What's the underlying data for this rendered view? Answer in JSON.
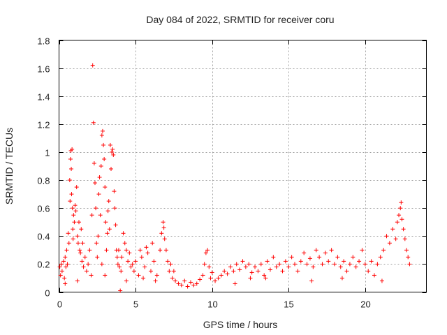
{
  "chart_data": {
    "type": "scatter",
    "title": "Day 084 of 2022, SRMTID for receiver coru",
    "xlabel": "GPS time / hours",
    "ylabel": "SRMTID / TECUs",
    "xlim": [
      0,
      24
    ],
    "ylim": [
      0,
      1.8
    ],
    "xticks": [
      0,
      5,
      10,
      15,
      20
    ],
    "xtick_labels": [
      "0",
      "5",
      "10",
      "15",
      "20"
    ],
    "yticks": [
      0,
      0.2,
      0.4,
      0.6,
      0.8,
      1,
      1.2,
      1.4,
      1.6,
      1.8
    ],
    "ytick_labels": [
      "0",
      "0.2",
      "0.4",
      "0.6",
      "0.8",
      "1",
      "1.2",
      "1.4",
      "1.6",
      "1.8"
    ],
    "grid": true,
    "marker": "+",
    "color": "#ff0000",
    "series": [
      {
        "name": "SRMTID",
        "points": [
          [
            0.05,
            0.18
          ],
          [
            0.1,
            0.12
          ],
          [
            0.15,
            0.2
          ],
          [
            0.2,
            0.15
          ],
          [
            0.3,
            0.22
          ],
          [
            0.35,
            0.1
          ],
          [
            0.4,
            0.25
          ],
          [
            0.45,
            0.18
          ],
          [
            0.5,
            0.3
          ],
          [
            0.55,
            0.2
          ],
          [
            0.6,
            0.42
          ],
          [
            0.65,
            0.35
          ],
          [
            0.7,
            0.8
          ],
          [
            0.72,
            0.65
          ],
          [
            0.75,
            0.95
          ],
          [
            0.78,
            1.01
          ],
          [
            0.8,
            0.88
          ],
          [
            0.82,
            0.7
          ],
          [
            0.85,
            1.02
          ],
          [
            0.88,
            0.6
          ],
          [
            0.9,
            0.45
          ],
          [
            0.92,
            0.38
          ],
          [
            0.95,
            0.55
          ],
          [
            1.0,
            0.5
          ],
          [
            1.05,
            0.62
          ],
          [
            1.1,
            0.58
          ],
          [
            1.15,
            0.75
          ],
          [
            1.2,
            0.4
          ],
          [
            1.25,
            0.35
          ],
          [
            1.3,
            0.5
          ],
          [
            1.35,
            0.3
          ],
          [
            1.4,
            0.28
          ],
          [
            1.45,
            0.45
          ],
          [
            1.5,
            0.22
          ],
          [
            1.55,
            0.35
          ],
          [
            1.6,
            0.18
          ],
          [
            1.7,
            0.25
          ],
          [
            1.8,
            0.15
          ],
          [
            1.9,
            0.2
          ],
          [
            2.0,
            0.3
          ],
          [
            2.1,
            0.12
          ],
          [
            2.15,
            0.55
          ],
          [
            2.2,
            1.62
          ],
          [
            2.25,
            1.21
          ],
          [
            2.3,
            0.92
          ],
          [
            2.35,
            0.78
          ],
          [
            2.4,
            0.6
          ],
          [
            2.45,
            0.35
          ],
          [
            2.5,
            0.25
          ],
          [
            2.55,
            0.4
          ],
          [
            2.6,
            0.7
          ],
          [
            2.65,
            0.82
          ],
          [
            2.7,
            0.55
          ],
          [
            2.75,
            0.9
          ],
          [
            2.8,
            1.12
          ],
          [
            2.85,
            1.15
          ],
          [
            2.9,
            1.05
          ],
          [
            2.95,
            0.95
          ],
          [
            3.0,
            0.75
          ],
          [
            3.05,
            0.5
          ],
          [
            3.1,
            0.3
          ],
          [
            3.15,
            0.42
          ],
          [
            3.2,
            0.58
          ],
          [
            3.25,
            0.65
          ],
          [
            3.3,
            0.45
          ],
          [
            3.35,
            1.05
          ],
          [
            3.4,
            0.88
          ],
          [
            3.45,
            1.0
          ],
          [
            3.5,
            1.02
          ],
          [
            3.55,
            0.98
          ],
          [
            3.6,
            0.72
          ],
          [
            3.65,
            0.6
          ],
          [
            3.7,
            0.48
          ],
          [
            3.75,
            0.3
          ],
          [
            3.8,
            0.25
          ],
          [
            3.85,
            0.2
          ],
          [
            3.9,
            0.3
          ],
          [
            3.95,
            0.18
          ],
          [
            4.0,
            0.01
          ],
          [
            4.05,
            0.15
          ],
          [
            4.1,
            0.25
          ],
          [
            4.2,
            0.42
          ],
          [
            4.3,
            0.35
          ],
          [
            4.4,
            0.3
          ],
          [
            4.5,
            0.22
          ],
          [
            4.6,
            0.28
          ],
          [
            4.7,
            0.18
          ],
          [
            4.8,
            0.2
          ],
          [
            4.9,
            0.15
          ],
          [
            5.0,
            0.22
          ],
          [
            5.2,
            0.12
          ],
          [
            5.4,
            0.25
          ],
          [
            5.6,
            0.18
          ],
          [
            5.8,
            0.28
          ],
          [
            6.0,
            0.15
          ],
          [
            6.2,
            0.22
          ],
          [
            6.4,
            0.12
          ],
          [
            6.6,
            0.3
          ],
          [
            6.7,
            0.42
          ],
          [
            6.8,
            0.5
          ],
          [
            6.85,
            0.46
          ],
          [
            6.9,
            0.38
          ],
          [
            7.0,
            0.3
          ],
          [
            7.1,
            0.22
          ],
          [
            7.2,
            0.15
          ],
          [
            7.3,
            0.2
          ],
          [
            7.4,
            0.1
          ],
          [
            7.5,
            0.15
          ],
          [
            7.6,
            0.08
          ],
          [
            7.8,
            0.06
          ],
          [
            8.0,
            0.05
          ],
          [
            8.2,
            0.08
          ],
          [
            8.4,
            0.04
          ],
          [
            8.6,
            0.07
          ],
          [
            8.8,
            0.05
          ],
          [
            9.0,
            0.06
          ],
          [
            9.2,
            0.09
          ],
          [
            9.4,
            0.12
          ],
          [
            9.5,
            0.2
          ],
          [
            9.6,
            0.28
          ],
          [
            9.7,
            0.3
          ],
          [
            9.8,
            0.18
          ],
          [
            9.9,
            0.1
          ],
          [
            10.0,
            0.14
          ],
          [
            10.2,
            0.08
          ],
          [
            10.4,
            0.1
          ],
          [
            10.6,
            0.12
          ],
          [
            10.8,
            0.15
          ],
          [
            11.0,
            0.13
          ],
          [
            11.2,
            0.18
          ],
          [
            11.4,
            0.15
          ],
          [
            11.6,
            0.2
          ],
          [
            11.8,
            0.16
          ],
          [
            12.0,
            0.22
          ],
          [
            12.2,
            0.18
          ],
          [
            12.4,
            0.2
          ],
          [
            12.6,
            0.14
          ],
          [
            12.8,
            0.18
          ],
          [
            13.0,
            0.15
          ],
          [
            13.2,
            0.2
          ],
          [
            13.4,
            0.12
          ],
          [
            13.6,
            0.22
          ],
          [
            13.8,
            0.16
          ],
          [
            14.0,
            0.25
          ],
          [
            14.2,
            0.18
          ],
          [
            14.4,
            0.2
          ],
          [
            14.6,
            0.15
          ],
          [
            14.8,
            0.22
          ],
          [
            15.0,
            0.18
          ],
          [
            15.2,
            0.25
          ],
          [
            15.4,
            0.2
          ],
          [
            15.6,
            0.15
          ],
          [
            15.8,
            0.22
          ],
          [
            16.0,
            0.28
          ],
          [
            16.2,
            0.2
          ],
          [
            16.4,
            0.24
          ],
          [
            16.6,
            0.18
          ],
          [
            16.8,
            0.3
          ],
          [
            17.0,
            0.25
          ],
          [
            17.2,
            0.2
          ],
          [
            17.4,
            0.28
          ],
          [
            17.6,
            0.22
          ],
          [
            17.8,
            0.3
          ],
          [
            18.0,
            0.2
          ],
          [
            18.2,
            0.25
          ],
          [
            18.4,
            0.18
          ],
          [
            18.6,
            0.22
          ],
          [
            18.8,
            0.15
          ],
          [
            19.0,
            0.2
          ],
          [
            19.2,
            0.25
          ],
          [
            19.4,
            0.18
          ],
          [
            19.6,
            0.22
          ],
          [
            19.8,
            0.3
          ],
          [
            20.0,
            0.2
          ],
          [
            20.2,
            0.15
          ],
          [
            20.4,
            0.22
          ],
          [
            20.6,
            0.12
          ],
          [
            20.8,
            0.2
          ],
          [
            21.0,
            0.25
          ],
          [
            21.2,
            0.3
          ],
          [
            21.4,
            0.4
          ],
          [
            21.6,
            0.35
          ],
          [
            21.8,
            0.45
          ],
          [
            22.0,
            0.38
          ],
          [
            22.1,
            0.5
          ],
          [
            22.2,
            0.55
          ],
          [
            22.3,
            0.6
          ],
          [
            22.35,
            0.64
          ],
          [
            22.4,
            0.52
          ],
          [
            22.5,
            0.45
          ],
          [
            22.6,
            0.38
          ],
          [
            22.7,
            0.3
          ],
          [
            22.8,
            0.25
          ],
          [
            22.9,
            0.2
          ],
          [
            21.1,
            0.08
          ],
          [
            18.5,
            0.1
          ],
          [
            16.5,
            0.08
          ],
          [
            13.5,
            0.1
          ],
          [
            12.5,
            0.1
          ],
          [
            11.5,
            0.06
          ],
          [
            5.3,
            0.3
          ],
          [
            5.5,
            0.1
          ],
          [
            5.7,
            0.32
          ],
          [
            6.1,
            0.35
          ],
          [
            6.3,
            0.08
          ],
          [
            4.4,
            0.08
          ],
          [
            3.0,
            0.12
          ],
          [
            1.2,
            0.08
          ],
          [
            0.4,
            0.06
          ],
          [
            2.8,
            0.2
          ]
        ]
      }
    ]
  }
}
